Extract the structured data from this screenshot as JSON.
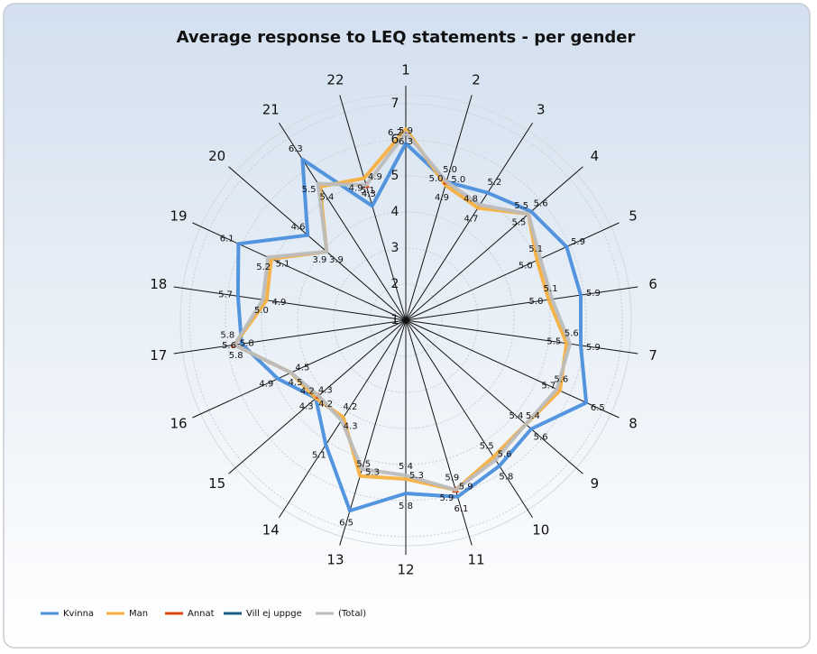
{
  "chart_data": {
    "type": "radar",
    "title": "Average response to LEQ statements - per gender",
    "categories": [
      "1",
      "2",
      "3",
      "4",
      "5",
      "6",
      "7",
      "8",
      "9",
      "10",
      "11",
      "12",
      "13",
      "14",
      "15",
      "16",
      "17",
      "18",
      "19",
      "20",
      "21",
      "22"
    ],
    "ylim": [
      1,
      7
    ],
    "yticks": [
      1,
      2,
      3,
      4,
      5,
      6,
      7
    ],
    "grid": true,
    "legend": "bottom",
    "series": [
      {
        "name": "Kvinna",
        "color": "#4a8fdc",
        "values": [
          5.9,
          5.0,
          5.2,
          5.6,
          5.9,
          5.9,
          5.9,
          6.5,
          5.6,
          5.8,
          6.1,
          5.8,
          6.5,
          5.1,
          4.3,
          4.9,
          5.6,
          5.7,
          6.1,
          4.6,
          6.3,
          4.3
        ],
        "value_labels": [
          "5.9",
          "5.0",
          "5.2",
          "5.6",
          "5.9",
          "5.9",
          "5.9",
          "6.5",
          "5.6",
          "5.8",
          "6.1",
          "5.8",
          "6.5",
          "5.1",
          "4.3",
          "4.9",
          "5.6",
          "5.7",
          "6.1",
          "4.6",
          "6.3",
          "4.3"
        ]
      },
      {
        "name": "Man",
        "color": "#f5b040",
        "values": [
          6.3,
          4.9,
          4.7,
          5.5,
          5.0,
          5.0,
          5.5,
          5.7,
          5.4,
          5.5,
          5.9,
          5.4,
          5.5,
          4.2,
          4.3,
          4.5,
          5.8,
          4.9,
          5.1,
          3.9,
          5.4,
          5.1
        ],
        "value_labels": [
          "6.3",
          "4.9",
          "4.7",
          "5.5",
          "5.0",
          "5.0",
          "5.5",
          "5.7",
          "5.4",
          "5.5",
          "5.9",
          "5.4",
          "5.5",
          "4.2",
          "4.3",
          "4.5",
          "5.8",
          "4.9",
          "5.1",
          "3.9",
          "5.4",
          "5.1"
        ]
      },
      {
        "name": "Annat",
        "color": "#d9480f",
        "values": [
          null,
          5.0,
          null,
          null,
          null,
          null,
          null,
          null,
          null,
          null,
          5.9,
          null,
          null,
          null,
          4.2,
          null,
          5.8,
          null,
          null,
          null,
          null,
          4.9
        ],
        "value_labels": [
          null,
          "5.0",
          null,
          null,
          null,
          null,
          null,
          null,
          null,
          null,
          "5.9",
          null,
          null,
          null,
          "4.2",
          null,
          "5.8",
          null,
          null,
          null,
          null,
          "4.9"
        ]
      },
      {
        "name": "Vill ej uppge",
        "color": "#1c5f86",
        "values": [
          null,
          null,
          null,
          null,
          null,
          null,
          null,
          null,
          null,
          null,
          null,
          null,
          null,
          null,
          null,
          null,
          null,
          null,
          null,
          null,
          null,
          null
        ]
      },
      {
        "name": "(Total)",
        "color": "#bcbcbc",
        "values": [
          6.2,
          5.0,
          4.8,
          5.5,
          5.1,
          5.1,
          5.6,
          5.6,
          5.4,
          5.6,
          5.9,
          5.3,
          5.3,
          4.3,
          4.2,
          4.5,
          5.8,
          5.0,
          5.2,
          3.9,
          5.5,
          4.9
        ],
        "value_labels": [
          "6.2",
          "5.0",
          "4.8",
          "5.5",
          "5.1",
          "5.1",
          "5.6",
          "5.6",
          "5.4",
          "5.6",
          "5.9",
          "5.3",
          "5.3",
          "4.3",
          "4.2",
          "4.5",
          "5.8",
          "5.0",
          "5.2",
          "3.9",
          "5.5",
          "4.9"
        ]
      }
    ]
  }
}
